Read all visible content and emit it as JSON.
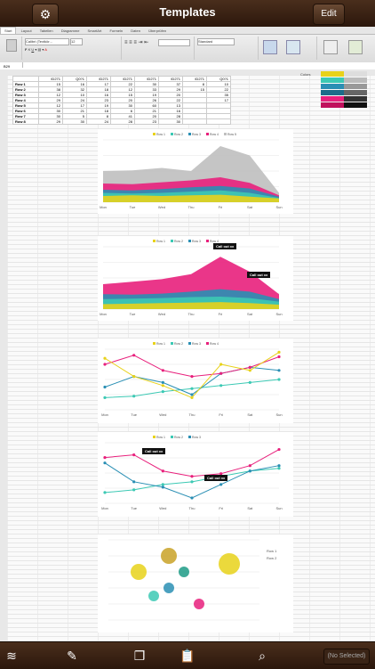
{
  "app": {
    "title": "Templates",
    "edit_label": "Edit",
    "status_label": "(No Selected)"
  },
  "ribbon": {
    "tabs": [
      "Start",
      "Layout",
      "Tabellen",
      "Diagramme",
      "SmartArt",
      "Formeln",
      "Daten",
      "Überprüfen"
    ],
    "font_name": "Calibri (Textkör...",
    "font_size": "12",
    "number_format": "Standard",
    "cell_ref": "B29"
  },
  "table": {
    "headers": [
      "",
      "ID271",
      "Q0?1",
      "ID271",
      "ID271",
      "ID271",
      "ID271",
      "ID271",
      "Q0?1"
    ],
    "rows": [
      [
        "Row 1",
        "15",
        "16",
        "17",
        "22",
        "30",
        "37",
        "8",
        "10"
      ],
      [
        "Row 2",
        "38",
        "32",
        "18",
        "12",
        "33",
        "29",
        "15",
        "22"
      ],
      [
        "Row 3",
        "12",
        "10",
        "16",
        "15",
        "19",
        "20",
        "",
        "35"
      ],
      [
        "Row 4",
        "29",
        "24",
        "23",
        "20",
        "26",
        "22",
        "",
        "17"
      ],
      [
        "Row 5",
        "12",
        "17",
        "19",
        "30",
        "60",
        "13",
        "",
        ""
      ],
      [
        "Row 6",
        "30",
        "21",
        "18",
        "6",
        "21",
        "16",
        "",
        ""
      ],
      [
        "Row 7",
        "30",
        "5",
        "8",
        "41",
        "20",
        "28",
        "",
        ""
      ],
      [
        "Row 8",
        "29",
        "30",
        "24",
        "28",
        "23",
        "30",
        "",
        ""
      ]
    ],
    "side_label": "Colors"
  },
  "colors": {
    "palette": [
      "#e8d21a",
      "#3cc9b4",
      "#2a8fb4",
      "#e8207c",
      "#bfbfbf",
      "#6e6e6e"
    ],
    "swatches_left": [
      "#e8d21a",
      "#3cc9b4",
      "#2a8fb4",
      "#1d6c8a",
      "#e8207c",
      "#c0105c"
    ],
    "swatches_right": [
      "#dddddd",
      "#bbbbbb",
      "#999999",
      "#666666",
      "#333333",
      "#111111"
    ]
  },
  "callouts": {
    "c1": "Call out xx",
    "c2": "Call out xx",
    "c3": "Call out xx",
    "c4": "Call out xx"
  },
  "chart_data": [
    {
      "type": "area",
      "categories": [
        "Mon",
        "Tue",
        "Wed",
        "Thu",
        "Fri",
        "Sat",
        "Sun"
      ],
      "series": [
        {
          "name": "Row 1",
          "values": [
            20,
            22,
            20,
            22,
            24,
            18,
            12
          ]
        },
        {
          "name": "Row 2",
          "values": [
            30,
            28,
            30,
            34,
            38,
            30,
            14
          ]
        },
        {
          "name": "Row 3",
          "values": [
            40,
            38,
            42,
            48,
            52,
            44,
            18
          ]
        },
        {
          "name": "Row 4",
          "values": [
            60,
            58,
            64,
            70,
            80,
            62,
            22
          ]
        },
        {
          "name": "Row 5",
          "values": [
            100,
            102,
            110,
            100,
            180,
            150,
            30
          ]
        }
      ],
      "ylim": [
        0,
        200
      ]
    },
    {
      "type": "area",
      "categories": [
        "Mon",
        "Tue",
        "Wed",
        "Thu",
        "Fri",
        "Sat",
        "Sun"
      ],
      "series": [
        {
          "name": "Row 1",
          "values": [
            20,
            22,
            24,
            26,
            28,
            24,
            18
          ]
        },
        {
          "name": "Row 2",
          "values": [
            40,
            42,
            44,
            48,
            50,
            44,
            30
          ]
        },
        {
          "name": "Row 3",
          "values": [
            60,
            58,
            62,
            70,
            80,
            70,
            40
          ]
        },
        {
          "name": "Row 4",
          "values": [
            100,
            110,
            120,
            140,
            210,
            150,
            60
          ]
        }
      ],
      "ylim": [
        0,
        250
      ]
    },
    {
      "type": "line",
      "categories": [
        "Mon",
        "Tue",
        "Wed",
        "Thu",
        "Fri",
        "Sat",
        "Sun"
      ],
      "series": [
        {
          "name": "Row 1",
          "values": [
            8,
            9,
            12,
            14,
            16,
            18,
            20
          ]
        },
        {
          "name": "Row 2",
          "values": [
            15,
            22,
            18,
            10,
            24,
            28,
            26
          ]
        },
        {
          "name": "Row 3",
          "values": [
            30,
            36,
            26,
            22,
            24,
            28,
            35
          ]
        },
        {
          "name": "Row 4",
          "values": [
            34,
            22,
            16,
            8,
            30,
            26,
            38
          ]
        }
      ],
      "ylim": [
        0,
        40
      ]
    },
    {
      "type": "line",
      "categories": [
        "Mon",
        "Tue",
        "Wed",
        "Thu",
        "Fri",
        "Sat",
        "Sun"
      ],
      "series": [
        {
          "name": "Row 1",
          "values": [
            8,
            10,
            14,
            16,
            20,
            24,
            26
          ]
        },
        {
          "name": "Row 2",
          "values": [
            30,
            16,
            12,
            4,
            14,
            24,
            28
          ]
        },
        {
          "name": "Row 3",
          "values": [
            34,
            36,
            24,
            20,
            22,
            28,
            40
          ]
        }
      ],
      "ylim": [
        0,
        45
      ]
    },
    {
      "type": "scatter",
      "series": [
        {
          "name": "Row 1",
          "points": [
            [
              2,
              6,
              3
            ],
            [
              3,
              3,
              2
            ],
            [
              4,
              4,
              2
            ],
            [
              6,
              2,
              2
            ]
          ]
        },
        {
          "name": "Row 2",
          "points": [
            [
              4,
              8,
              3
            ],
            [
              5,
              6,
              2
            ],
            [
              8,
              7,
              4
            ]
          ]
        }
      ],
      "xlim": [
        0,
        10
      ],
      "ylim": [
        0,
        10
      ]
    }
  ]
}
